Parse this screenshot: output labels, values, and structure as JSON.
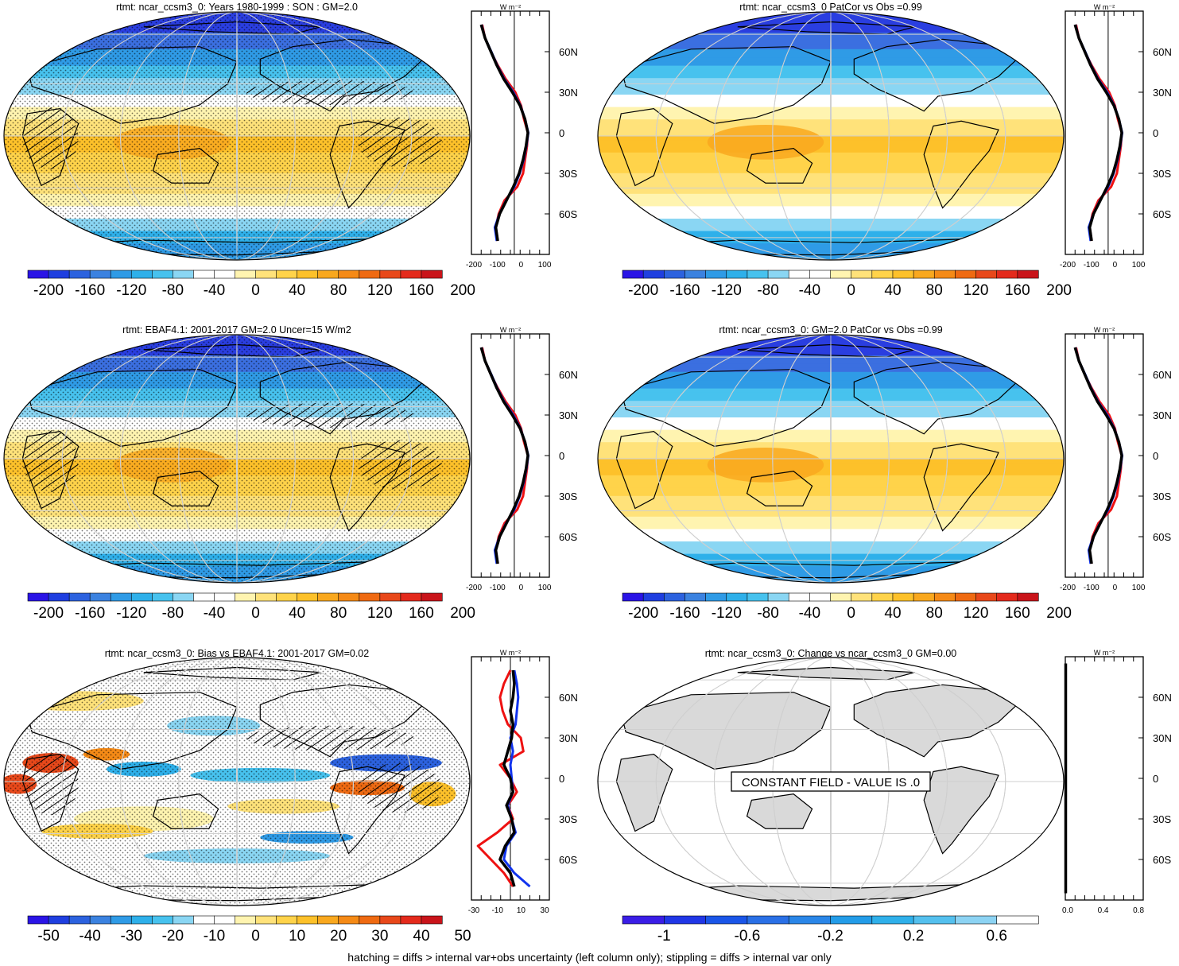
{
  "footnote": "hatching = diffs > internal var+obs uncertainty (left column only); stippling = diffs > internal var only",
  "profile_unit": "W m⁻²",
  "lat_labels": [
    "60N",
    "30N",
    "0",
    "30S",
    "60S"
  ],
  "colors": {
    "red": "#ee1111",
    "blue": "#1133ee",
    "black": "#000000",
    "land": "#d9d9d9"
  },
  "panels": [
    {
      "id": "model",
      "title": "rtmt: ncar_ccsm3_0: Years 1980-1999 : SON : GM=2.0",
      "field": "mean",
      "hatch": true,
      "stipple": true,
      "colorbar": {
        "labels": [
          "-200",
          "-160",
          "-120",
          "-80",
          "-40",
          "0",
          "40",
          "80",
          "120",
          "160",
          "200"
        ],
        "scheme": "wide"
      },
      "profile": {
        "ticks": [
          "-200",
          "-100",
          "0",
          "100"
        ],
        "xlim": [
          -220,
          180
        ]
      }
    },
    {
      "id": "model-b",
      "title": "rtmt: ncar_ccsm3_0 PatCor vs Obs =0.99",
      "field": "mean2",
      "hatch": false,
      "stipple": false,
      "colorbar": {
        "labels": [
          "-200",
          "-160",
          "-120",
          "-80",
          "-40",
          "0",
          "40",
          "80",
          "120",
          "160",
          "200"
        ],
        "scheme": "wide"
      },
      "profile": {
        "ticks": [
          "-200",
          "-100",
          "0",
          "100"
        ],
        "xlim": [
          -220,
          180
        ]
      }
    },
    {
      "id": "obs",
      "title": "rtmt: EBAF4.1: 2001-2017 GM=2.0 Uncer=15 W/m2",
      "field": "mean",
      "hatch": true,
      "stipple": true,
      "colorbar": {
        "labels": [
          "-200",
          "-160",
          "-120",
          "-80",
          "-40",
          "0",
          "40",
          "80",
          "120",
          "160",
          "200"
        ],
        "scheme": "wide"
      },
      "profile": {
        "ticks": [
          "-200",
          "-100",
          "0",
          "100"
        ],
        "xlim": [
          -220,
          180
        ]
      }
    },
    {
      "id": "model-c",
      "title": "rtmt: ncar_ccsm3_0: GM=2.0 PatCor vs Obs =0.99",
      "field": "mean2",
      "hatch": false,
      "stipple": false,
      "colorbar": {
        "labels": [
          "-200",
          "-160",
          "-120",
          "-80",
          "-40",
          "0",
          "40",
          "80",
          "120",
          "160",
          "200"
        ],
        "scheme": "wide"
      },
      "profile": {
        "ticks": [
          "-200",
          "-100",
          "0",
          "100"
        ],
        "xlim": [
          -220,
          180
        ]
      }
    },
    {
      "id": "bias",
      "title": "rtmt: ncar_ccsm3_0: Bias vs EBAF4.1: 2001-2017  GM=0.02",
      "field": "bias",
      "hatch": true,
      "stipple": true,
      "colorbar": {
        "labels": [
          "-50",
          "-40",
          "-30",
          "-20",
          "-10",
          "0",
          "10",
          "20",
          "30",
          "40",
          "50"
        ],
        "scheme": "wide"
      },
      "profile": {
        "ticks": [
          "-30",
          "-10",
          "10",
          "30"
        ],
        "xlim": [
          -30,
          30
        ]
      }
    },
    {
      "id": "change",
      "title": "rtmt: ncar_ccsm3_0: Change vs ncar_ccsm3_0 GM=0.00",
      "field": "constant",
      "hatch": false,
      "stipple": false,
      "note": "CONSTANT FIELD - VALUE IS .0",
      "colorbar": {
        "labels": [
          "-1",
          "-0.6",
          "-0.2",
          "0.2",
          "0.6"
        ],
        "scheme": "narrow"
      },
      "profile": {
        "ticks": [
          "0.0",
          "0.4",
          "0.8"
        ],
        "xlim": [
          0,
          1
        ]
      }
    }
  ],
  "chart_data": [
    {
      "type": "heatmap",
      "title": "rtmt: ncar_ccsm3_0: Years 1980-1999 : SON : GM=2.0",
      "projection": "robinson",
      "units": "W m-2",
      "colorbar_ticks": [
        -200,
        -160,
        -120,
        -80,
        -40,
        0,
        40,
        80,
        120,
        160,
        200
      ],
      "zonal_mean_profile": {
        "series": [
          {
            "color": "black",
            "lat": [
              80,
              70,
              60,
              50,
              40,
              30,
              20,
              10,
              0,
              -10,
              -20,
              -30,
              -40,
              -50,
              -60,
              -70,
              -80
            ],
            "values": [
              -170,
              -150,
              -120,
              -90,
              -55,
              -10,
              30,
              55,
              70,
              60,
              45,
              25,
              -5,
              -40,
              -75,
              -95,
              -85
            ]
          },
          {
            "color": "red",
            "lat": [
              80,
              70,
              60,
              50,
              40,
              30,
              20,
              10,
              0,
              -10,
              -20,
              -30,
              -40,
              -50,
              -60,
              -70,
              -80
            ],
            "values": [
              -165,
              -150,
              -120,
              -85,
              -45,
              5,
              35,
              50,
              70,
              65,
              55,
              45,
              15,
              -50,
              -80,
              -95,
              -85
            ]
          },
          {
            "color": "blue",
            "lat": [
              80,
              70,
              60,
              50,
              40,
              30,
              20,
              10,
              0,
              -10,
              -20,
              -30,
              -40,
              -50,
              -60,
              -70,
              -80
            ],
            "values": [
              -168,
              -150,
              -118,
              -88,
              -52,
              -5,
              32,
              55,
              72,
              62,
              48,
              28,
              0,
              -42,
              -76,
              -100,
              -90
            ]
          }
        ]
      }
    },
    {
      "type": "heatmap",
      "title": "rtmt: ncar_ccsm3_0 PatCor vs Obs =0.99",
      "projection": "robinson",
      "units": "W m-2",
      "colorbar_ticks": [
        -200,
        -160,
        -120,
        -80,
        -40,
        0,
        40,
        80,
        120,
        160,
        200
      ]
    },
    {
      "type": "heatmap",
      "title": "rtmt: EBAF4.1: 2001-2017 GM=2.0 Uncer=15 W/m2",
      "projection": "robinson",
      "units": "W m-2",
      "colorbar_ticks": [
        -200,
        -160,
        -120,
        -80,
        -40,
        0,
        40,
        80,
        120,
        160,
        200
      ]
    },
    {
      "type": "heatmap",
      "title": "rtmt: ncar_ccsm3_0: GM=2.0 PatCor vs Obs =0.99",
      "projection": "robinson",
      "units": "W m-2",
      "colorbar_ticks": [
        -200,
        -160,
        -120,
        -80,
        -40,
        0,
        40,
        80,
        120,
        160,
        200
      ]
    },
    {
      "type": "heatmap",
      "title": "rtmt: ncar_ccsm3_0: Bias vs EBAF4.1: 2001-2017  GM=0.02",
      "projection": "robinson",
      "units": "W m-2",
      "colorbar_ticks": [
        -50,
        -40,
        -30,
        -20,
        -10,
        0,
        10,
        20,
        30,
        40,
        50
      ],
      "zonal_mean_profile": {
        "series": [
          {
            "color": "black",
            "lat": [
              80,
              70,
              60,
              50,
              40,
              30,
              20,
              10,
              0,
              -10,
              -20,
              -30,
              -40,
              -50,
              -60,
              -70,
              -80
            ],
            "values": [
              2,
              3,
              2,
              0,
              2,
              1,
              -2,
              -5,
              0,
              2,
              -3,
              1,
              3,
              -4,
              -8,
              0,
              3
            ]
          },
          {
            "color": "red",
            "lat": [
              80,
              70,
              60,
              50,
              40,
              30,
              20,
              10,
              0,
              -10,
              -20,
              -30,
              -40,
              -50,
              -60,
              -70,
              -80
            ],
            "values": [
              0,
              -5,
              -8,
              -6,
              -2,
              8,
              10,
              -8,
              0,
              5,
              -2,
              2,
              -10,
              -25,
              -15,
              -5,
              2
            ]
          },
          {
            "color": "blue",
            "lat": [
              80,
              70,
              60,
              50,
              40,
              30,
              20,
              10,
              0,
              -10,
              -20,
              -30,
              -40,
              -50,
              -60,
              -70,
              -80
            ],
            "values": [
              3,
              5,
              6,
              5,
              4,
              0,
              2,
              0,
              1,
              2,
              -2,
              1,
              4,
              -3,
              -5,
              3,
              15
            ]
          }
        ]
      }
    },
    {
      "type": "heatmap",
      "title": "rtmt: ncar_ccsm3_0: Change vs ncar_ccsm3_0 GM=0.00",
      "projection": "robinson",
      "units": "W m-2",
      "colorbar_ticks": [
        -1,
        -0.6,
        -0.2,
        0.2,
        0.6
      ],
      "constant_value": 0
    }
  ]
}
